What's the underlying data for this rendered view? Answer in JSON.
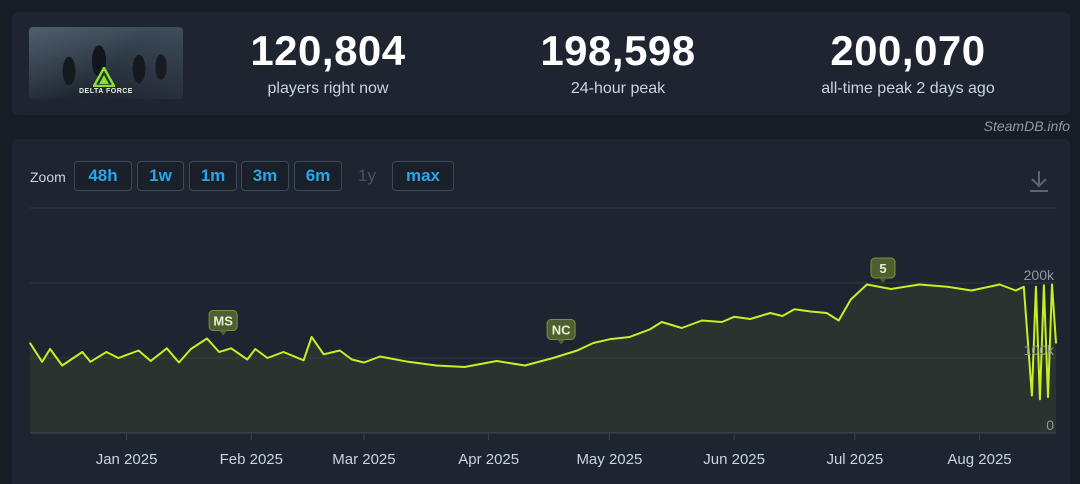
{
  "game": {
    "logo_text": "DELTA FORCE"
  },
  "stats": [
    {
      "value": "120,804",
      "label": "players right now"
    },
    {
      "value": "198,598",
      "label": "24-hour peak"
    },
    {
      "value": "200,070",
      "label": "all-time peak 2 days ago"
    }
  ],
  "credit": "SteamDB.info",
  "zoom": {
    "label": "Zoom",
    "buttons": [
      {
        "label": "48h",
        "enabled": true
      },
      {
        "label": "1w",
        "enabled": true
      },
      {
        "label": "1m",
        "enabled": true
      },
      {
        "label": "3m",
        "enabled": true
      },
      {
        "label": "6m",
        "enabled": true
      },
      {
        "label": "1y",
        "enabled": false
      },
      {
        "label": "max",
        "enabled": true
      }
    ]
  },
  "colors": {
    "line": "#c7f024",
    "accent": "#29a6e8",
    "flag_bg": "#4e6031"
  },
  "icons": {
    "download": "download-icon"
  },
  "chart_data": {
    "type": "line",
    "title": "",
    "xlabel": "",
    "ylabel": "",
    "ylim": [
      0,
      200000
    ],
    "yticks": [
      "0",
      "100k",
      "200k"
    ],
    "xticks": [
      "Jan 2025",
      "Feb 2025",
      "Mar 2025",
      "Apr 2025",
      "May 2025",
      "Jun 2025",
      "Jul 2025",
      "Aug 2025"
    ],
    "x_range_days": [
      -24,
      231
    ],
    "grid": true,
    "legend": "none",
    "series": [
      {
        "name": "",
        "x_days": [
          -24,
          -21,
          -19,
          -16,
          -11,
          -9,
          -5,
          -2,
          3,
          6,
          10,
          13,
          16,
          20,
          23,
          26,
          30,
          32,
          35,
          39,
          44,
          46,
          49,
          53,
          56,
          59,
          63,
          70,
          77,
          84,
          92,
          99,
          106,
          112,
          116,
          120,
          125,
          130,
          133,
          138,
          143,
          148,
          151,
          155,
          160,
          163,
          166,
          170,
          174,
          177,
          180,
          184,
          190,
          197,
          204,
          210,
          217,
          221,
          223,
          225,
          226,
          227,
          228,
          229,
          230,
          231
        ],
        "values": [
          120000,
          95000,
          112000,
          90000,
          108000,
          95000,
          108000,
          100000,
          110000,
          96000,
          113000,
          94000,
          112000,
          126000,
          108000,
          113000,
          98000,
          112000,
          100000,
          108000,
          97000,
          128000,
          105000,
          110000,
          98000,
          94000,
          102000,
          95000,
          90000,
          88000,
          96000,
          90000,
          100000,
          110000,
          120000,
          125000,
          128000,
          138000,
          148000,
          140000,
          150000,
          148000,
          155000,
          152000,
          160000,
          156000,
          165000,
          162000,
          160000,
          150000,
          178000,
          198000,
          192000,
          198000,
          195000,
          190000,
          198000,
          190000,
          195000,
          50000,
          195000,
          45000,
          197000,
          48000,
          198000,
          120000
        ]
      }
    ],
    "annotations": [
      {
        "label": "MS",
        "x_day": 24,
        "value": 130000
      },
      {
        "label": "NC",
        "x_day": 108,
        "value": 118000
      },
      {
        "label": "5",
        "x_day": 188,
        "value": 200000
      }
    ]
  }
}
